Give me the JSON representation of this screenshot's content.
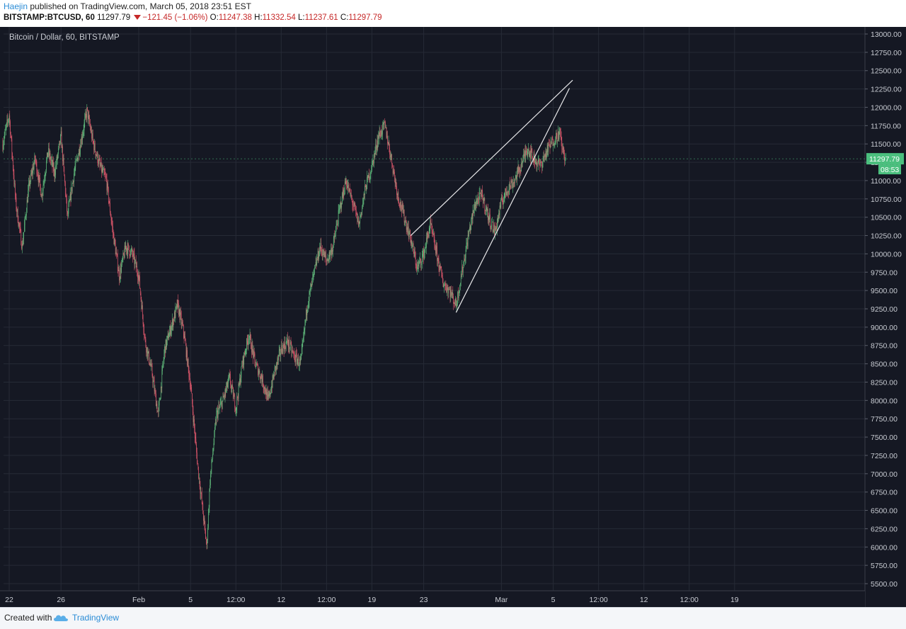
{
  "header": {
    "user": "Haejin",
    "published": " published on TradingView.com, March 05, 2018 23:51 EST",
    "symbol": "BITSTAMP:BTCUSD, 60",
    "price": "11297.79",
    "change": "−121.45 (−1.06%)",
    "o_label": "O:",
    "o_value": "11247.38",
    "h_label": "H:",
    "h_value": "11332.54",
    "l_label": "L:",
    "l_value": "11237.61",
    "c_label": "C:",
    "c_value": "11297.79"
  },
  "footer": {
    "created_with": "Created with",
    "brand": "TradingView"
  },
  "chart_data": {
    "type": "candlestick",
    "title": "Bitcoin / Dollar, 60, BITSTAMP",
    "last_price_label": "11297.79",
    "countdown_label": "08:53",
    "ylim": [
      5350,
      13100
    ],
    "y_ticks": [
      13000,
      12750,
      12500,
      12250,
      12000,
      11750,
      11500,
      11250,
      11000,
      10750,
      10500,
      10250,
      10000,
      9750,
      9500,
      9250,
      9000,
      8750,
      8500,
      8250,
      8000,
      7750,
      7500,
      7250,
      7000,
      6750,
      6500,
      6250,
      6000,
      5750,
      5500
    ],
    "x_ticks": [
      "22",
      "26",
      "Feb",
      "5",
      "12:00",
      "12",
      "12:00",
      "19",
      "23",
      "Mar",
      "5",
      "12:00",
      "12",
      "12:00",
      "19"
    ],
    "price_path": [
      [
        "Jan 21 12:00",
        11500
      ],
      [
        "Jan 22",
        11900
      ],
      [
        "Jan 22 12:00",
        10700
      ],
      [
        "Jan 23",
        10100
      ],
      [
        "Jan 23 12:00",
        10900
      ],
      [
        "Jan 24",
        11300
      ],
      [
        "Jan 24 12:00",
        10800
      ],
      [
        "Jan 25",
        11400
      ],
      [
        "Jan 25 12:00",
        11100
      ],
      [
        "Jan 26",
        11600
      ],
      [
        "Jan 26 12:00",
        10500
      ],
      [
        "Jan 27",
        11100
      ],
      [
        "Jan 27 12:00",
        11500
      ],
      [
        "Jan 28",
        11950
      ],
      [
        "Jan 28 12:00",
        11500
      ],
      [
        "Jan 29",
        11200
      ],
      [
        "Jan 29 12:00",
        11000
      ],
      [
        "Jan 30",
        10300
      ],
      [
        "Jan 30 12:00",
        9700
      ],
      [
        "Jan 31",
        10100
      ],
      [
        "Jan 31 12:00",
        10000
      ],
      [
        "Feb 1",
        9700
      ],
      [
        "Feb 1 12:00",
        8800
      ],
      [
        "Feb 2",
        8400
      ],
      [
        "Feb 2 12:00",
        7800
      ],
      [
        "Feb 3",
        8700
      ],
      [
        "Feb 3 12:00",
        9000
      ],
      [
        "Feb 4",
        9300
      ],
      [
        "Feb 4 12:00",
        8900
      ],
      [
        "Feb 5",
        8200
      ],
      [
        "Feb 5 12:00",
        7200
      ],
      [
        "Feb 6",
        6400
      ],
      [
        "Feb 6 06:00",
        6000
      ],
      [
        "Feb 6 12:00",
        6900
      ],
      [
        "Feb 7",
        7800
      ],
      [
        "Feb 7 12:00",
        8000
      ],
      [
        "Feb 8",
        8300
      ],
      [
        "Feb 8 12:00",
        7900
      ],
      [
        "Feb 9",
        8500
      ],
      [
        "Feb 9 12:00",
        8900
      ],
      [
        "Feb 10",
        8500
      ],
      [
        "Feb 10 12:00",
        8300
      ],
      [
        "Feb 11",
        8000
      ],
      [
        "Feb 11 12:00",
        8400
      ],
      [
        "Feb 12",
        8700
      ],
      [
        "Feb 12 12:00",
        8800
      ],
      [
        "Feb 13",
        8600
      ],
      [
        "Feb 13 12:00",
        8500
      ],
      [
        "Feb 14",
        9300
      ],
      [
        "Feb 14 12:00",
        9700
      ],
      [
        "Feb 15",
        10100
      ],
      [
        "Feb 15 12:00",
        9900
      ],
      [
        "Feb 16",
        10100
      ],
      [
        "Feb 16 12:00",
        10600
      ],
      [
        "Feb 17",
        11000
      ],
      [
        "Feb 17 12:00",
        10700
      ],
      [
        "Feb 18",
        10400
      ],
      [
        "Feb 18 12:00",
        10900
      ],
      [
        "Feb 19",
        11200
      ],
      [
        "Feb 19 12:00",
        11600
      ],
      [
        "Feb 20",
        11750
      ],
      [
        "Feb 20 12:00",
        11300
      ],
      [
        "Feb 21",
        10800
      ],
      [
        "Feb 21 12:00",
        10500
      ],
      [
        "Feb 22",
        10200
      ],
      [
        "Feb 22 12:00",
        9800
      ],
      [
        "Feb 23",
        10000
      ],
      [
        "Feb 23 12:00",
        10400
      ],
      [
        "Feb 24",
        10000
      ],
      [
        "Feb 24 12:00",
        9600
      ],
      [
        "Feb 25",
        9500
      ],
      [
        "Feb 25 12:00",
        9300
      ],
      [
        "Feb 26",
        9800
      ],
      [
        "Feb 26 12:00",
        10300
      ],
      [
        "Feb 27",
        10700
      ],
      [
        "Feb 27 12:00",
        10800
      ],
      [
        "Feb 28",
        10500
      ],
      [
        "Feb 28 12:00",
        10300
      ],
      [
        "Mar 1",
        10700
      ],
      [
        "Mar 1 12:00",
        10900
      ],
      [
        "Mar 2",
        11000
      ],
      [
        "Mar 2 12:00",
        11200
      ],
      [
        "Mar 3",
        11450
      ],
      [
        "Mar 3 12:00",
        11300
      ],
      [
        "Mar 4",
        11200
      ],
      [
        "Mar 4 12:00",
        11400
      ],
      [
        "Mar 5",
        11550
      ],
      [
        "Mar 5 12:00",
        11650
      ],
      [
        "Mar 5 18:00",
        11400
      ],
      [
        "Mar 5 23:00",
        11298
      ]
    ],
    "trendlines": [
      {
        "from": [
          "Feb 22",
          10250
        ],
        "to": [
          "Mar 6 12:00",
          12370
        ]
      },
      {
        "from": [
          "Feb 25 12:00",
          9200
        ],
        "to": [
          "Mar 6 06:00",
          12260
        ]
      }
    ],
    "colors": {
      "background": "#151823",
      "grid": "#262a36",
      "up": "#5fb87a",
      "down": "#d9566a",
      "axis_text": "#c8cbd2",
      "price_tag": "#4bbf7e",
      "trendline": "#e8e8ea"
    }
  }
}
